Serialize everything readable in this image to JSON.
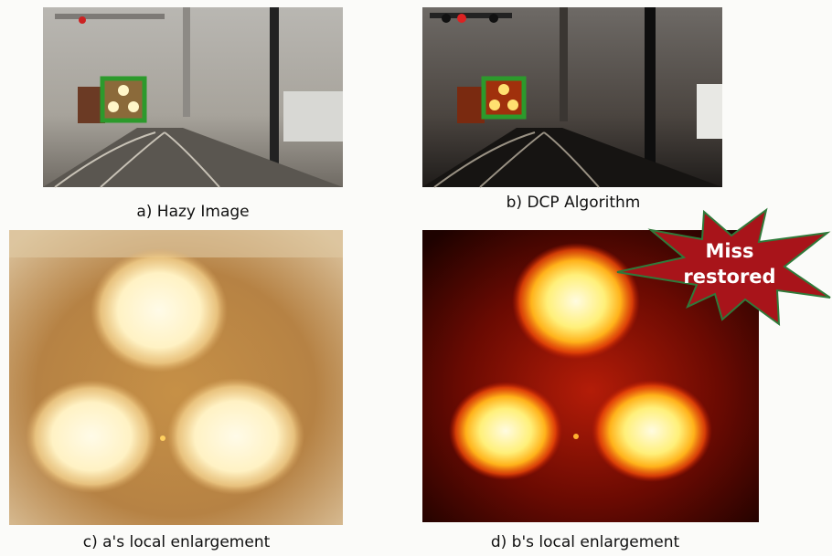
{
  "figure": {
    "panels": [
      {
        "caption": "a)  Hazy Image"
      },
      {
        "caption": "b)  DCP  Algorithm"
      },
      {
        "caption": "c)  a's local enlargement"
      },
      {
        "caption": "d)  b's local enlargement"
      }
    ],
    "callout": {
      "lines": [
        "Miss",
        "restored"
      ]
    }
  }
}
